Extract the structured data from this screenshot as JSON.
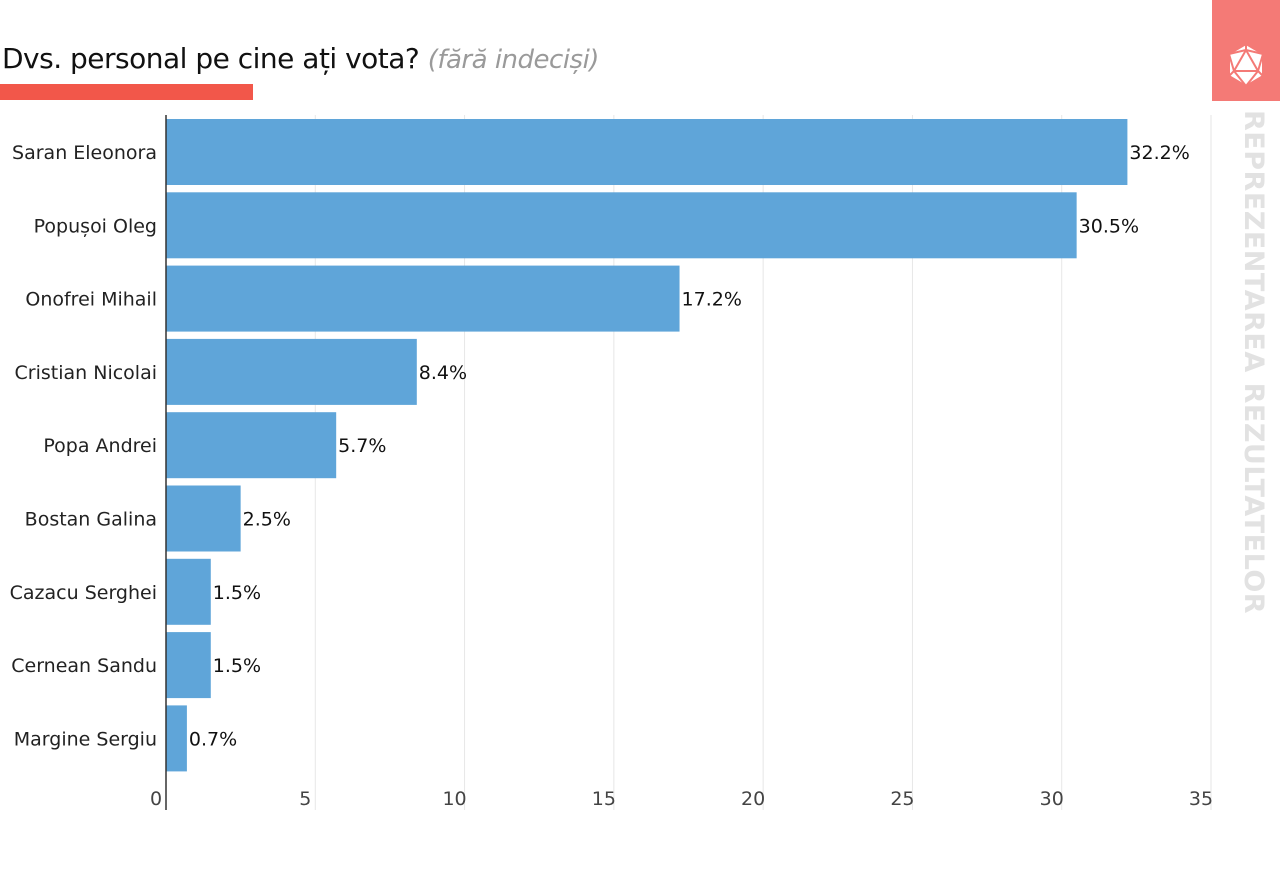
{
  "header": {
    "title": "Dvs. personal pe cine ați vota?",
    "subtitle": "(fără indeciși)",
    "side_text": "REPREZENTAREA REZULTATELOR",
    "accent_color": "#f2574a",
    "logo_color": "#f47a76",
    "logo_icon": "icosahedron-icon"
  },
  "chart_data": {
    "type": "bar",
    "orientation": "horizontal",
    "title": "Dvs. personal pe cine ați vota? (fără indeciși)",
    "categories": [
      "Saran Eleonora",
      "Popușoi Oleg",
      "Onofrei Mihail",
      "Cristian Nicolai",
      "Popa Andrei",
      "Bostan Galina",
      "Cazacu Serghei",
      "Cernean Sandu",
      "Margine Sergiu"
    ],
    "values": [
      32.2,
      30.5,
      17.2,
      8.4,
      5.7,
      2.5,
      1.5,
      1.5,
      0.7
    ],
    "labels": [
      "32.2%",
      "30.5%",
      "17.2%",
      "8.4%",
      "5.7%",
      "2.5%",
      "1.5%",
      "1.5%",
      "0.7%"
    ],
    "xlim": [
      0,
      35
    ],
    "xticks": [
      "0",
      "5",
      "10",
      "15",
      "20",
      "25",
      "30",
      "35"
    ],
    "xlabel": "",
    "ylabel": "",
    "grid": true,
    "bar_color": "#5fa5d9"
  }
}
